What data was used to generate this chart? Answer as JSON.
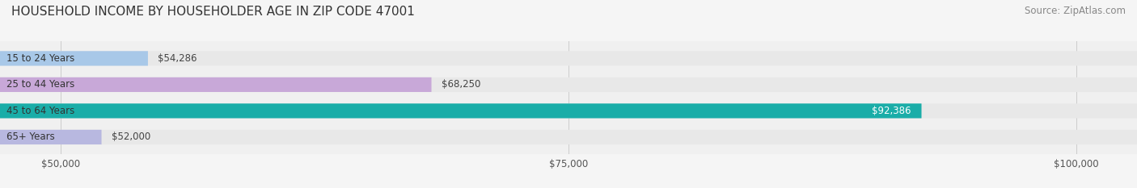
{
  "title": "HOUSEHOLD INCOME BY HOUSEHOLDER AGE IN ZIP CODE 47001",
  "source": "Source: ZipAtlas.com",
  "categories": [
    "15 to 24 Years",
    "25 to 44 Years",
    "45 to 64 Years",
    "65+ Years"
  ],
  "values": [
    54286,
    68250,
    92386,
    52000
  ],
  "bar_colors": [
    "#a8c8e8",
    "#c8a8d8",
    "#1aada8",
    "#b8b8e0"
  ],
  "bar_labels": [
    "$54,286",
    "$68,250",
    "$92,386",
    "$52,000"
  ],
  "label_colors": [
    "#444444",
    "#444444",
    "#ffffff",
    "#444444"
  ],
  "xlim": [
    47000,
    103000
  ],
  "xticks": [
    50000,
    75000,
    100000
  ],
  "xtick_labels": [
    "$50,000",
    "$75,000",
    "$100,000"
  ],
  "background_color": "#f0f0f0",
  "bar_background_color": "#e8e8e8",
  "title_fontsize": 11,
  "source_fontsize": 8.5,
  "label_fontsize": 8.5,
  "tick_fontsize": 8.5,
  "cat_fontsize": 8.5,
  "bar_height": 0.55
}
